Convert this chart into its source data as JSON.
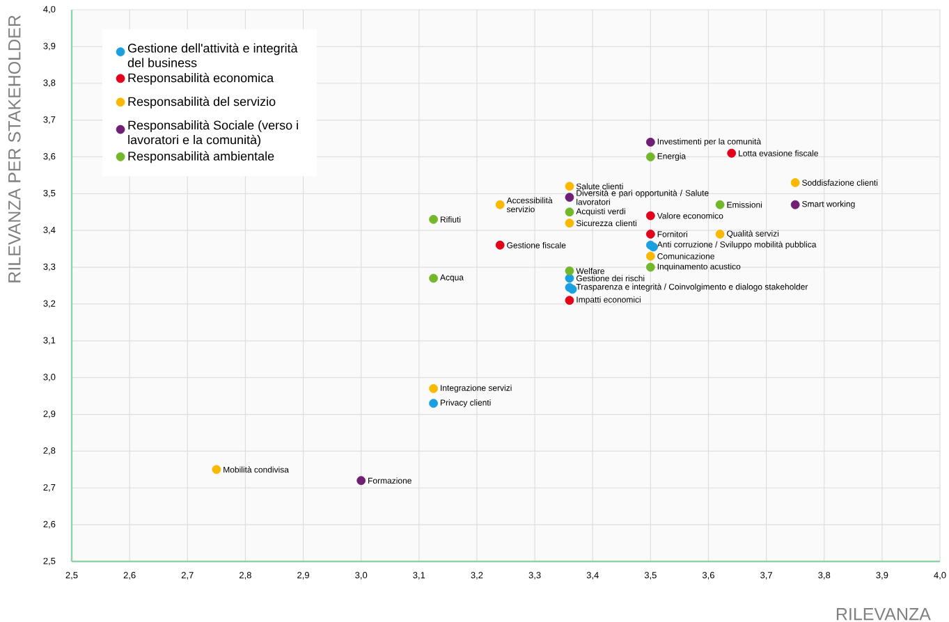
{
  "chart_data": {
    "type": "scatter",
    "xlabel": "RILEVANZA",
    "ylabel": "RILEVANZA PER STAKEHOLDER",
    "xlim": [
      2.5,
      4.0
    ],
    "ylim": [
      2.5,
      4.0
    ],
    "xticks": [
      {
        "value": 2.5,
        "label": "2,5"
      },
      {
        "value": 2.6,
        "label": "2,6"
      },
      {
        "value": 2.7,
        "label": "2,7"
      },
      {
        "value": 2.8,
        "label": "2,8"
      },
      {
        "value": 2.9,
        "label": "2,9"
      },
      {
        "value": 3.0,
        "label": "3,0"
      },
      {
        "value": 3.1,
        "label": "3,1"
      },
      {
        "value": 3.2,
        "label": "3,2"
      },
      {
        "value": 3.3,
        "label": "3,3"
      },
      {
        "value": 3.4,
        "label": "3,4"
      },
      {
        "value": 3.5,
        "label": "3,5"
      },
      {
        "value": 3.6,
        "label": "3,6"
      },
      {
        "value": 3.7,
        "label": "3,7"
      },
      {
        "value": 3.8,
        "label": "3,8"
      },
      {
        "value": 3.9,
        "label": "3,9"
      },
      {
        "value": 4.0,
        "label": "4,0"
      }
    ],
    "yticks": [
      {
        "value": 2.5,
        "label": "2,5"
      },
      {
        "value": 2.6,
        "label": "2,6"
      },
      {
        "value": 2.7,
        "label": "2,7"
      },
      {
        "value": 2.8,
        "label": "2,8"
      },
      {
        "value": 2.9,
        "label": "2,9"
      },
      {
        "value": 3.0,
        "label": "3,0"
      },
      {
        "value": 3.1,
        "label": "3,1"
      },
      {
        "value": 3.2,
        "label": "3,2"
      },
      {
        "value": 3.3,
        "label": "3,3"
      },
      {
        "value": 3.4,
        "label": "3,4"
      },
      {
        "value": 3.5,
        "label": "3,5"
      },
      {
        "value": 3.6,
        "label": "3,6"
      },
      {
        "value": 3.7,
        "label": "3,7"
      },
      {
        "value": 3.8,
        "label": "3,8"
      },
      {
        "value": 3.9,
        "label": "3,9"
      },
      {
        "value": 4.0,
        "label": "4,0"
      }
    ],
    "grid": true,
    "legend": "top left",
    "marker": "circle",
    "series": [
      {
        "name": "Gestione dell'attività e integrità del business",
        "color": "#1a9fe0",
        "x": [
          3.5,
          3.505,
          3.36,
          3.36,
          3.365,
          3.125
        ],
        "values": [
          3.36,
          3.355,
          3.27,
          3.245,
          3.24,
          2.93
        ]
      },
      {
        "name": "Responsabilità economica",
        "color": "#e2001a",
        "x": [
          3.64,
          3.5,
          3.5,
          3.24,
          3.36
        ],
        "values": [
          3.61,
          3.44,
          3.39,
          3.36,
          3.21
        ]
      },
      {
        "name": "Responsabilità del servizio",
        "color": "#fbb800",
        "x": [
          3.75,
          3.36,
          3.24,
          3.36,
          3.62,
          3.5,
          3.125,
          2.75
        ],
        "values": [
          3.53,
          3.52,
          3.47,
          3.42,
          3.39,
          3.33,
          2.97,
          2.75
        ]
      },
      {
        "name": "Responsabilità Sociale (verso i lavoratori e la comunità)",
        "color": "#6f1f74",
        "x": [
          3.5,
          3.36,
          3.75,
          3.0
        ],
        "values": [
          3.64,
          3.49,
          3.47,
          2.72
        ]
      },
      {
        "name": "Responsabilità ambientale",
        "color": "#73b72b",
        "x": [
          3.5,
          3.62,
          3.125,
          3.36,
          3.5,
          3.36,
          3.125
        ],
        "values": [
          3.6,
          3.47,
          3.43,
          3.45,
          3.3,
          3.29,
          3.27
        ]
      }
    ],
    "annotations": [
      {
        "text": "Anti corruzione / Sviluppo mobilità pubblica",
        "x": 3.5,
        "y": 3.36
      },
      {
        "text": "Gestione dei rischi",
        "x": 3.36,
        "y": 3.27
      },
      {
        "text": "Trasparenza e integrità / Coinvolgimento e dialogo stakeholder",
        "x": 3.36,
        "y": 3.245
      },
      {
        "text": "Privacy clienti",
        "x": 3.125,
        "y": 2.93
      },
      {
        "text": "Lotta evasione fiscale",
        "x": 3.64,
        "y": 3.61
      },
      {
        "text": "Valore economico",
        "x": 3.5,
        "y": 3.44
      },
      {
        "text": "Fornitori",
        "x": 3.5,
        "y": 3.39
      },
      {
        "text": "Gestione fiscale",
        "x": 3.24,
        "y": 3.36
      },
      {
        "text": "Impatti economici",
        "x": 3.36,
        "y": 3.21
      },
      {
        "text": "Soddisfazione clienti",
        "x": 3.75,
        "y": 3.53
      },
      {
        "text": "Salute clienti",
        "x": 3.36,
        "y": 3.52
      },
      {
        "text": "Accessibilità servizio",
        "x": 3.24,
        "y": 3.47
      },
      {
        "text": "Sicurezza clienti",
        "x": 3.36,
        "y": 3.42
      },
      {
        "text": "Qualità servizi",
        "x": 3.62,
        "y": 3.39
      },
      {
        "text": "Comunicazione",
        "x": 3.5,
        "y": 3.33
      },
      {
        "text": "Integrazione servizi",
        "x": 3.125,
        "y": 2.97
      },
      {
        "text": "Mobilità condivisa",
        "x": 2.75,
        "y": 2.75
      },
      {
        "text": "Investimenti per la comunità",
        "x": 3.5,
        "y": 3.64
      },
      {
        "text": "Diversità e pari opportunità / Salute lavoratori",
        "x": 3.36,
        "y": 3.49
      },
      {
        "text": "Smart working",
        "x": 3.75,
        "y": 3.47
      },
      {
        "text": "Formazione",
        "x": 3.0,
        "y": 2.72
      },
      {
        "text": "Energia",
        "x": 3.5,
        "y": 3.6
      },
      {
        "text": "Emissioni",
        "x": 3.62,
        "y": 3.47
      },
      {
        "text": "Rifiuti",
        "x": 3.125,
        "y": 3.43
      },
      {
        "text": "Acquisti verdi",
        "x": 3.36,
        "y": 3.45
      },
      {
        "text": "Inquinamento acustico",
        "x": 3.5,
        "y": 3.3
      },
      {
        "text": "Welfare",
        "x": 3.36,
        "y": 3.29
      },
      {
        "text": "Acqua",
        "x": 3.125,
        "y": 3.27
      }
    ]
  }
}
